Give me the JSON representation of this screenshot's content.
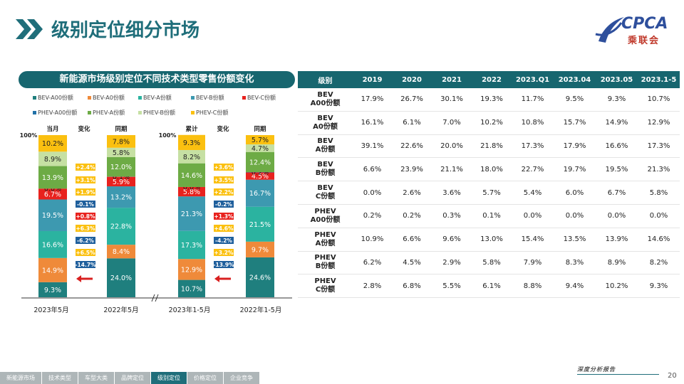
{
  "header": {
    "title": "级别定位细分市场",
    "logo_text": "CPCA",
    "logo_sub": "乘联会"
  },
  "left_chart": {
    "title": "新能源市场级别定位不同技术类型零售份额变化",
    "hundred_label": "100%"
  },
  "colors": {
    "teal": "#17666f",
    "BEV-A00": "#1f7f7e",
    "BEV-A0": "#ef8a3a",
    "BEV-A": "#2bb3a0",
    "BEV-B": "#3d99b0",
    "BEV-C": "#e8221e",
    "PHEV-A00": "#2171a8",
    "PHEV-A": "#6dab45",
    "PHEV-B": "#c6e0a3",
    "PHEV-C": "#fbc010",
    "arrow_red": "#d92020",
    "change_pos": "#fbc010",
    "change_neg": "#1f5f9c"
  },
  "chart_data": {
    "type": "bar",
    "stacked": true,
    "title": "新能源市场级别定位不同技术类型零售份额变化",
    "categories": [
      "2023年5月",
      "2022年5月",
      "2023年1-5月",
      "2022年1-5月"
    ],
    "column_headers": [
      "当月",
      "同期",
      "累计",
      "同期"
    ],
    "change_header": "变化",
    "ylim": [
      0,
      100
    ],
    "legend_position": "top",
    "series": [
      {
        "name": "BEV-A00份额",
        "values": [
          9.3,
          24.0,
          10.7,
          24.6
        ]
      },
      {
        "name": "BEV-A0份额",
        "values": [
          14.9,
          8.4,
          12.9,
          9.7
        ]
      },
      {
        "name": "BEV-A份额",
        "values": [
          16.6,
          22.8,
          17.3,
          21.5
        ]
      },
      {
        "name": "BEV-B份额",
        "values": [
          19.5,
          13.2,
          21.3,
          16.7
        ]
      },
      {
        "name": "BEV-C份额",
        "values": [
          6.7,
          5.9,
          5.8,
          4.5
        ]
      },
      {
        "name": "PHEV-A00份额",
        "values": [
          0.0,
          0.1,
          0.0,
          0.2
        ]
      },
      {
        "name": "PHEV-A份额",
        "values": [
          13.9,
          12.0,
          14.6,
          12.4
        ]
      },
      {
        "name": "PHEV-B份额",
        "values": [
          8.9,
          5.8,
          8.2,
          4.7
        ]
      },
      {
        "name": "PHEV-C份额",
        "values": [
          10.2,
          7.8,
          9.3,
          5.7
        ]
      }
    ],
    "changes_month": [
      "-14.7%",
      "+6.5%",
      "-6.2%",
      "+6.3%",
      "+0.8%",
      "-0.1%",
      "+1.9%",
      "+3.1%",
      "+2.4%"
    ],
    "changes_cumulative": [
      "-13.9%",
      "+3.2%",
      "-4.2%",
      "+4.6%",
      "+1.3%",
      "-0.2%",
      "+2.2%",
      "+3.5%",
      "+3.6%"
    ]
  },
  "table": {
    "headers": [
      "级别",
      "2019",
      "2020",
      "2021",
      "2022",
      "2023.Q1",
      "2023.04",
      "2023.05",
      "2023.1-5"
    ],
    "rows": [
      {
        "label1": "BEV",
        "label2": "A00份额",
        "values": [
          "17.9%",
          "26.7%",
          "30.1%",
          "19.3%",
          "11.7%",
          "9.5%",
          "9.3%",
          "10.7%"
        ]
      },
      {
        "label1": "BEV",
        "label2": "A0份额",
        "values": [
          "16.1%",
          "6.1%",
          "7.0%",
          "10.2%",
          "10.8%",
          "15.7%",
          "14.9%",
          "12.9%"
        ]
      },
      {
        "label1": "BEV",
        "label2": "A份额",
        "values": [
          "39.1%",
          "22.6%",
          "20.0%",
          "21.8%",
          "17.3%",
          "17.9%",
          "16.6%",
          "17.3%"
        ]
      },
      {
        "label1": "BEV",
        "label2": "B份额",
        "values": [
          "6.6%",
          "23.9%",
          "21.1%",
          "18.0%",
          "22.7%",
          "19.7%",
          "19.5%",
          "21.3%"
        ]
      },
      {
        "label1": "BEV",
        "label2": "C份额",
        "values": [
          "0.0%",
          "2.6%",
          "3.6%",
          "5.7%",
          "5.4%",
          "6.0%",
          "6.7%",
          "5.8%"
        ]
      },
      {
        "label1": "PHEV",
        "label2": "A00份额",
        "values": [
          "0.2%",
          "0.2%",
          "0.3%",
          "0.1%",
          "0.0%",
          "0.0%",
          "0.0%",
          "0.0%"
        ]
      },
      {
        "label1": "PHEV",
        "label2": "A份额",
        "values": [
          "10.9%",
          "6.6%",
          "9.6%",
          "13.0%",
          "15.4%",
          "13.5%",
          "13.9%",
          "14.6%"
        ]
      },
      {
        "label1": "PHEV",
        "label2": "B份额",
        "values": [
          "6.2%",
          "4.5%",
          "2.9%",
          "5.8%",
          "7.9%",
          "8.3%",
          "8.9%",
          "8.2%"
        ]
      },
      {
        "label1": "PHEV",
        "label2": "C份额",
        "values": [
          "2.8%",
          "6.8%",
          "5.5%",
          "6.1%",
          "8.8%",
          "9.4%",
          "10.2%",
          "9.3%"
        ]
      }
    ]
  },
  "footer": {
    "nav": [
      "新能源市场",
      "技术类型",
      "车型大类",
      "品牌定位",
      "级别定位",
      "价格定位",
      "企业竞争"
    ],
    "active_index": 4,
    "brand": "深度分析报告",
    "page_number": "20"
  }
}
